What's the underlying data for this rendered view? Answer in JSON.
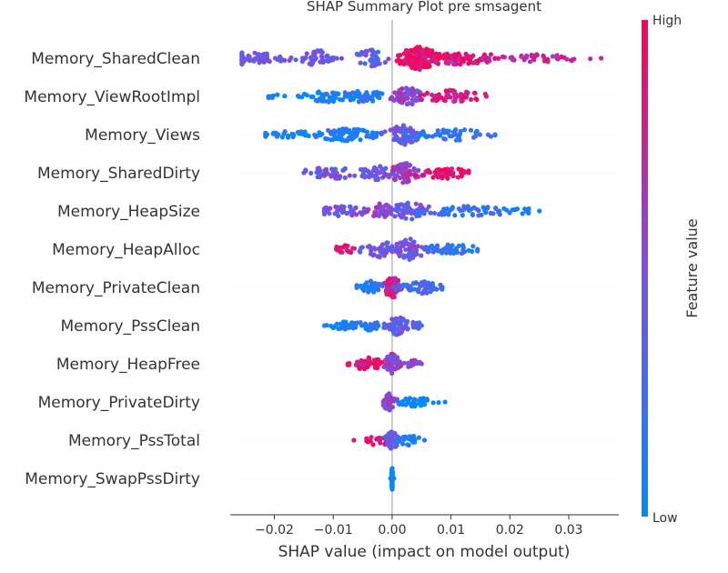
{
  "chart_data": {
    "type": "scatter",
    "subtype": "shap-beeswarm",
    "title": "SHAP Summary Plot pre smsagent",
    "xlabel": "SHAP value (impact on model output)",
    "xlim": [
      -0.0275,
      0.0385
    ],
    "xticks": [
      -0.02,
      -0.01,
      0.0,
      0.01,
      0.02,
      0.03
    ],
    "xtick_labels": [
      "−0.02",
      "−0.01",
      "0.00",
      "0.01",
      "0.02",
      "0.03"
    ],
    "grid": false,
    "colorbar": {
      "label": "Feature value",
      "high_label": "High",
      "low_label": "Low",
      "low_color": "#008bfb",
      "high_color": "#ff0052"
    },
    "features": [
      {
        "name": "Memory_SharedClean",
        "min": -0.0255,
        "max": 0.0355,
        "clusters": [
          {
            "x": -0.025,
            "spread": 0.006,
            "n": 70,
            "w": 0.55,
            "color": 0.45
          },
          {
            "x": -0.0125,
            "spread": 0.003,
            "n": 40,
            "w": 0.7,
            "color": 0.45
          },
          {
            "x": -0.0035,
            "spread": 0.0025,
            "n": 45,
            "w": 0.75,
            "color": 0.35
          },
          {
            "x": 0.0045,
            "spread": 0.003,
            "n": 140,
            "w": 1.0,
            "color": 0.95
          },
          {
            "x": 0.0115,
            "spread": 0.006,
            "n": 80,
            "w": 0.55,
            "color": 0.85
          },
          {
            "x": 0.025,
            "spread": 0.007,
            "n": 40,
            "w": 0.35,
            "color": 0.75
          }
        ]
      },
      {
        "name": "Memory_ViewRootImpl",
        "min": -0.021,
        "max": 0.016,
        "clusters": [
          {
            "x": -0.0195,
            "spread": 0.003,
            "n": 8,
            "w": 0.2,
            "color": 0.05
          },
          {
            "x": -0.01,
            "spread": 0.0045,
            "n": 50,
            "w": 0.55,
            "color": 0.05
          },
          {
            "x": -0.0045,
            "spread": 0.002,
            "n": 35,
            "w": 0.65,
            "color": 0.15
          },
          {
            "x": 0.0025,
            "spread": 0.002,
            "n": 60,
            "w": 0.85,
            "color": 0.55
          },
          {
            "x": 0.01,
            "spread": 0.0045,
            "n": 60,
            "w": 0.55,
            "color": 0.8
          }
        ]
      },
      {
        "name": "Memory_Views",
        "min": -0.0215,
        "max": 0.0175,
        "clusters": [
          {
            "x": -0.017,
            "spread": 0.0045,
            "n": 30,
            "w": 0.3,
            "color": 0.05
          },
          {
            "x": -0.008,
            "spread": 0.0055,
            "n": 80,
            "w": 0.55,
            "color": 0.1
          },
          {
            "x": 0.002,
            "spread": 0.0025,
            "n": 70,
            "w": 0.9,
            "color": 0.4
          },
          {
            "x": 0.011,
            "spread": 0.006,
            "n": 50,
            "w": 0.5,
            "color": 0.2
          }
        ]
      },
      {
        "name": "Memory_SharedDirty",
        "min": -0.015,
        "max": 0.013,
        "clusters": [
          {
            "x": -0.01,
            "spread": 0.0045,
            "n": 40,
            "w": 0.55,
            "color": 0.45
          },
          {
            "x": -0.003,
            "spread": 0.003,
            "n": 40,
            "w": 0.65,
            "color": 0.4
          },
          {
            "x": 0.002,
            "spread": 0.002,
            "n": 60,
            "w": 0.9,
            "color": 0.6
          },
          {
            "x": 0.0085,
            "spread": 0.004,
            "n": 50,
            "w": 0.55,
            "color": 0.9
          }
        ]
      },
      {
        "name": "Memory_HeapSize",
        "min": -0.0115,
        "max": 0.025,
        "clusters": [
          {
            "x": -0.008,
            "spread": 0.0035,
            "n": 40,
            "w": 0.5,
            "color": 0.45
          },
          {
            "x": -0.002,
            "spread": 0.002,
            "n": 35,
            "w": 0.7,
            "color": 0.55
          },
          {
            "x": 0.003,
            "spread": 0.003,
            "n": 60,
            "w": 0.75,
            "color": 0.4
          },
          {
            "x": 0.013,
            "spread": 0.007,
            "n": 50,
            "w": 0.45,
            "color": 0.2
          },
          {
            "x": 0.0225,
            "spread": 0.0025,
            "n": 14,
            "w": 0.25,
            "color": 0.05
          }
        ]
      },
      {
        "name": "Memory_HeapAlloc",
        "min": -0.0095,
        "max": 0.0145,
        "clusters": [
          {
            "x": -0.0075,
            "spread": 0.002,
            "n": 18,
            "w": 0.45,
            "color": 0.92
          },
          {
            "x": -0.002,
            "spread": 0.0025,
            "n": 40,
            "w": 0.7,
            "color": 0.45
          },
          {
            "x": 0.003,
            "spread": 0.0025,
            "n": 60,
            "w": 0.9,
            "color": 0.45
          },
          {
            "x": 0.01,
            "spread": 0.0045,
            "n": 40,
            "w": 0.45,
            "color": 0.2
          }
        ]
      },
      {
        "name": "Memory_PrivateClean",
        "min": -0.006,
        "max": 0.0085,
        "clusters": [
          {
            "x": -0.0035,
            "spread": 0.002,
            "n": 40,
            "w": 0.55,
            "color": 0.15
          },
          {
            "x": 0.0,
            "spread": 0.0012,
            "n": 70,
            "w": 1.0,
            "color": 0.8
          },
          {
            "x": 0.005,
            "spread": 0.003,
            "n": 50,
            "w": 0.55,
            "color": 0.25
          }
        ]
      },
      {
        "name": "Memory_PssClean",
        "min": -0.0115,
        "max": 0.005,
        "clusters": [
          {
            "x": -0.008,
            "spread": 0.0035,
            "n": 35,
            "w": 0.35,
            "color": 0.05
          },
          {
            "x": -0.0035,
            "spread": 0.002,
            "n": 25,
            "w": 0.45,
            "color": 0.15
          },
          {
            "x": 0.001,
            "spread": 0.0015,
            "n": 60,
            "w": 0.85,
            "color": 0.4
          },
          {
            "x": 0.004,
            "spread": 0.001,
            "n": 12,
            "w": 0.35,
            "color": 0.3
          }
        ]
      },
      {
        "name": "Memory_HeapFree",
        "min": -0.0075,
        "max": 0.005,
        "clusters": [
          {
            "x": -0.004,
            "spread": 0.0025,
            "n": 45,
            "w": 0.55,
            "color": 0.92
          },
          {
            "x": 0.0,
            "spread": 0.001,
            "n": 60,
            "w": 0.95,
            "color": 0.55
          },
          {
            "x": 0.0035,
            "spread": 0.0015,
            "n": 18,
            "w": 0.35,
            "color": 0.55
          }
        ]
      },
      {
        "name": "Memory_PrivateDirty",
        "min": -0.0015,
        "max": 0.009,
        "clusters": [
          {
            "x": -0.0005,
            "spread": 0.001,
            "n": 40,
            "w": 0.75,
            "color": 0.55
          },
          {
            "x": 0.004,
            "spread": 0.003,
            "n": 40,
            "w": 0.4,
            "color": 0.05
          }
        ]
      },
      {
        "name": "Memory_PssTotal",
        "min": -0.0065,
        "max": 0.0055,
        "clusters": [
          {
            "x": -0.0025,
            "spread": 0.002,
            "n": 20,
            "w": 0.5,
            "color": 0.85
          },
          {
            "x": 0.0,
            "spread": 0.001,
            "n": 50,
            "w": 0.8,
            "color": 0.4
          },
          {
            "x": 0.003,
            "spread": 0.002,
            "n": 20,
            "w": 0.45,
            "color": 0.1
          }
        ]
      },
      {
        "name": "Memory_SwapPssDirty",
        "min": -0.0003,
        "max": 0.0003,
        "clusters": [
          {
            "x": 0.0,
            "spread": 0.0001,
            "n": 50,
            "w": 1.0,
            "color": 0.05
          }
        ]
      }
    ]
  }
}
